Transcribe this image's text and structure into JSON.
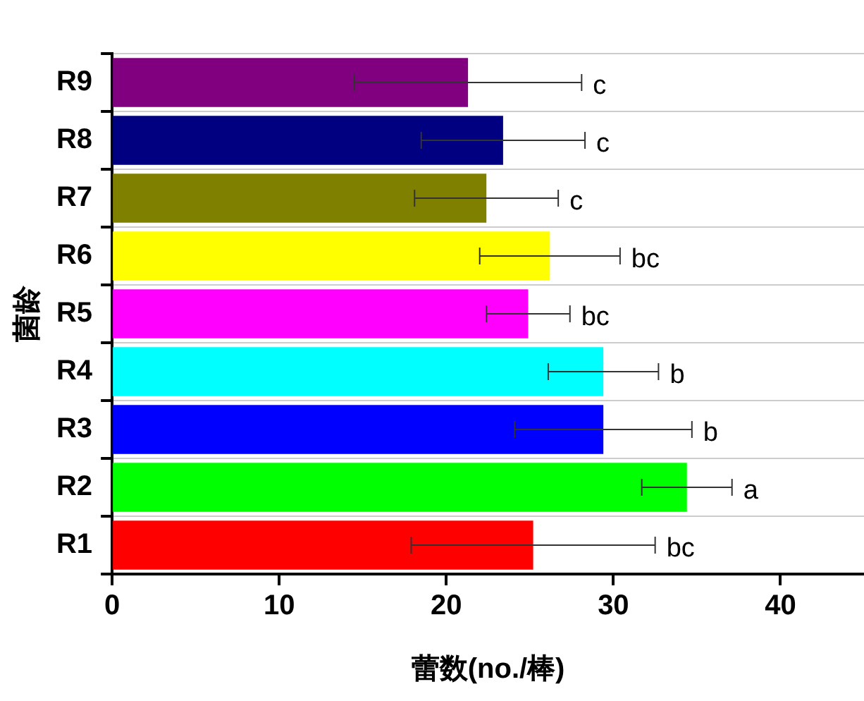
{
  "chart_data": {
    "type": "bar",
    "orientation": "horizontal",
    "xlabel": "蕾数(no./棒)",
    "ylabel": "菌龄",
    "categories": [
      "R9",
      "R8",
      "R7",
      "R6",
      "R5",
      "R4",
      "R3",
      "R2",
      "R1"
    ],
    "values": [
      21.3,
      23.4,
      22.4,
      26.2,
      24.9,
      29.4,
      29.4,
      34.4,
      25.2
    ],
    "errors": [
      6.8,
      4.9,
      4.3,
      4.2,
      2.5,
      3.3,
      5.3,
      2.7,
      7.3
    ],
    "colors": [
      "#800080",
      "#000080",
      "#808000",
      "#ffff00",
      "#ff00ff",
      "#00ffff",
      "#0000ff",
      "#00ff00",
      "#ff0000"
    ],
    "xlim": [
      0,
      45
    ],
    "xticks": [
      0,
      10,
      20,
      30,
      40
    ],
    "grid": "y",
    "legend": false,
    "annotations": [
      {
        "text": "c",
        "x": 28.1,
        "y": "R9"
      },
      {
        "text": "c",
        "x": 28.3,
        "y": "R8"
      },
      {
        "text": "c",
        "x": 26.7,
        "y": "R7"
      },
      {
        "text": "bc",
        "x": 30.4,
        "y": "R6"
      },
      {
        "text": "bc",
        "x": 27.4,
        "y": "R5"
      },
      {
        "text": "b",
        "x": 32.7,
        "y": "R4"
      },
      {
        "text": "b",
        "x": 34.7,
        "y": "R3"
      },
      {
        "text": "a",
        "x": 37.1,
        "y": "R2"
      },
      {
        "text": "bc",
        "x": 32.5,
        "y": "R1"
      }
    ]
  }
}
